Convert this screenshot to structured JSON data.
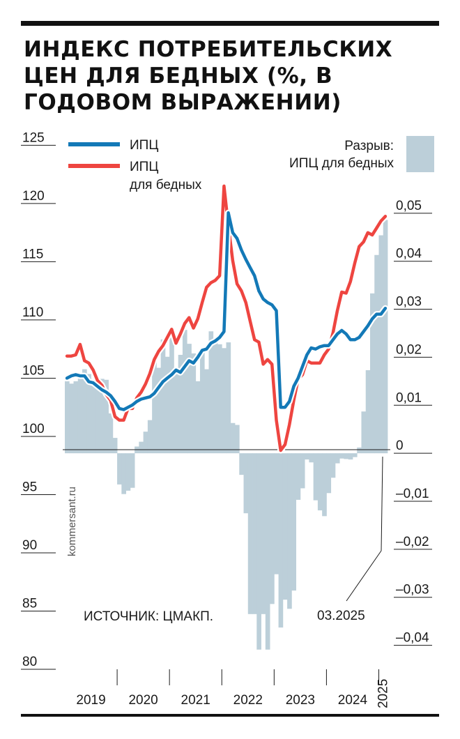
{
  "title": "ИНДЕКС ПОТРЕБИТЕЛЬСКИХ ЦЕН ДЛЯ БЕДНЫХ (%, В ГОДОВОМ ВЫРАЖЕНИИ)",
  "legend": {
    "cpi": "ИПЦ",
    "cpi_poor_line1": "ИПЦ",
    "cpi_poor_line2": "для бедных",
    "gap_line1": "Разрыв:",
    "gap_line2": "ИПЦ для бедных"
  },
  "source": "ИСТОЧНИК: ЦМАКП.",
  "watermark": "kommersant.ru",
  "annotation": "03.2025",
  "colors": {
    "cpi": "#1379b7",
    "cpi_poor": "#ee4540",
    "gap": "#bccfd9",
    "axis": "#1a1a1a"
  },
  "chart_data": {
    "type": "line",
    "x_labels": [
      "2019",
      "2020",
      "2021",
      "2022",
      "2023",
      "2024",
      "2025"
    ],
    "left_axis": {
      "ticks": [
        "125",
        "120",
        "115",
        "110",
        "105",
        "100",
        "95",
        "90",
        "85",
        "80"
      ],
      "range": [
        80,
        127
      ]
    },
    "right_axis": {
      "ticks": [
        "0,05",
        "0,04",
        "0,03",
        "0,02",
        "0,01",
        "0",
        "–0,01",
        "–0,02",
        "–0,03",
        "–0,04"
      ],
      "range": [
        -0.045,
        0.069
      ]
    },
    "start_month": "2019-01",
    "series": [
      {
        "name": "ИПЦ",
        "axis": "left",
        "values": [
          105,
          105.2,
          105.3,
          105.2,
          105.2,
          104.7,
          104.6,
          104.3,
          104,
          103.8,
          103.5,
          103,
          102.4,
          102.3,
          102.5,
          102.7,
          103,
          103.2,
          103.3,
          103.4,
          103.7,
          104.2,
          104.7,
          105,
          105.3,
          105.7,
          105.5,
          106,
          106.5,
          106.3,
          106.8,
          107.4,
          107.5,
          108,
          108.2,
          108.5,
          109,
          119.2,
          117.5,
          117,
          116,
          115.2,
          114.5,
          113.8,
          112.5,
          111.8,
          111.5,
          111.3,
          110.8,
          102.5,
          102.5,
          103,
          104.3,
          105,
          106,
          107,
          107.6,
          107.5,
          107.7,
          107.8,
          107.8,
          108.3,
          108.8,
          109.1,
          108.8,
          108.3,
          108.3,
          108.5,
          109,
          109.5,
          110.1,
          110.5,
          110.5,
          111
        ]
      },
      {
        "name": "ИПЦ для бедных",
        "axis": "left",
        "values": [
          106.9,
          106.9,
          107,
          107.9,
          106.5,
          106.3,
          105.7,
          104.8,
          104.4,
          103.6,
          103.1,
          101.7,
          101.4,
          101.4,
          102.4,
          102.4,
          103.3,
          103.8,
          104.5,
          105.4,
          106.6,
          107.3,
          107.8,
          108.5,
          109.2,
          108,
          108.8,
          109.7,
          110.2,
          109.3,
          110.1,
          111.5,
          112.8,
          113.2,
          113.4,
          113.8,
          121.5,
          118.1,
          115.1,
          113.1,
          112.5,
          111.5,
          109.9,
          108.3,
          108.1,
          106.2,
          106.6,
          106.2,
          101.4,
          98.8,
          99.3,
          101,
          103.1,
          104.9,
          105.3,
          106.5,
          106.3,
          106.3,
          106.3,
          107,
          107.5,
          108.9,
          110.8,
          112.4,
          112.3,
          113.3,
          114.9,
          116.3,
          116.7,
          117.5,
          117.3,
          117.9,
          118.5,
          118.9
        ]
      },
      {
        "name": "Разрыв: ИПЦ для бедных",
        "axis": "right",
        "type": "bar",
        "values": [
          0.015,
          0.0145,
          0.015,
          0.016,
          0.0175,
          0.0165,
          0.0153,
          0.0156,
          0.0155,
          0.0153,
          0.0083,
          0.0032,
          -0.0065,
          -0.0085,
          -0.0078,
          -0.0072,
          0.0014,
          0.0024,
          0.0045,
          0.0069,
          0.0197,
          0.0178,
          0.0237,
          0.0201,
          0.0248,
          0.0165,
          0.0205,
          0.0257,
          0.0228,
          0.0208,
          0.015,
          0.0212,
          0.0175,
          0.0254,
          0.0234,
          0.0227,
          0.0219,
          0.0231,
          0.0063,
          0.0059,
          -0.0045,
          -0.0125,
          -0.0335,
          -0.0335,
          -0.0409,
          -0.0335,
          -0.0409,
          -0.0314,
          -0.0252,
          -0.0363,
          -0.0305,
          -0.0324,
          -0.0286,
          -0.0097,
          -0.0073,
          -0.0013,
          -0.0019,
          -0.0098,
          -0.0119,
          -0.0131,
          -0.0083,
          -0.0051,
          -0.0021,
          -0.0011,
          -0.0012,
          -0.0013,
          -0.0008,
          0.0012,
          0.0087,
          0.0173,
          0.0333,
          0.0413,
          0.0454,
          0.0486
        ]
      }
    ]
  }
}
